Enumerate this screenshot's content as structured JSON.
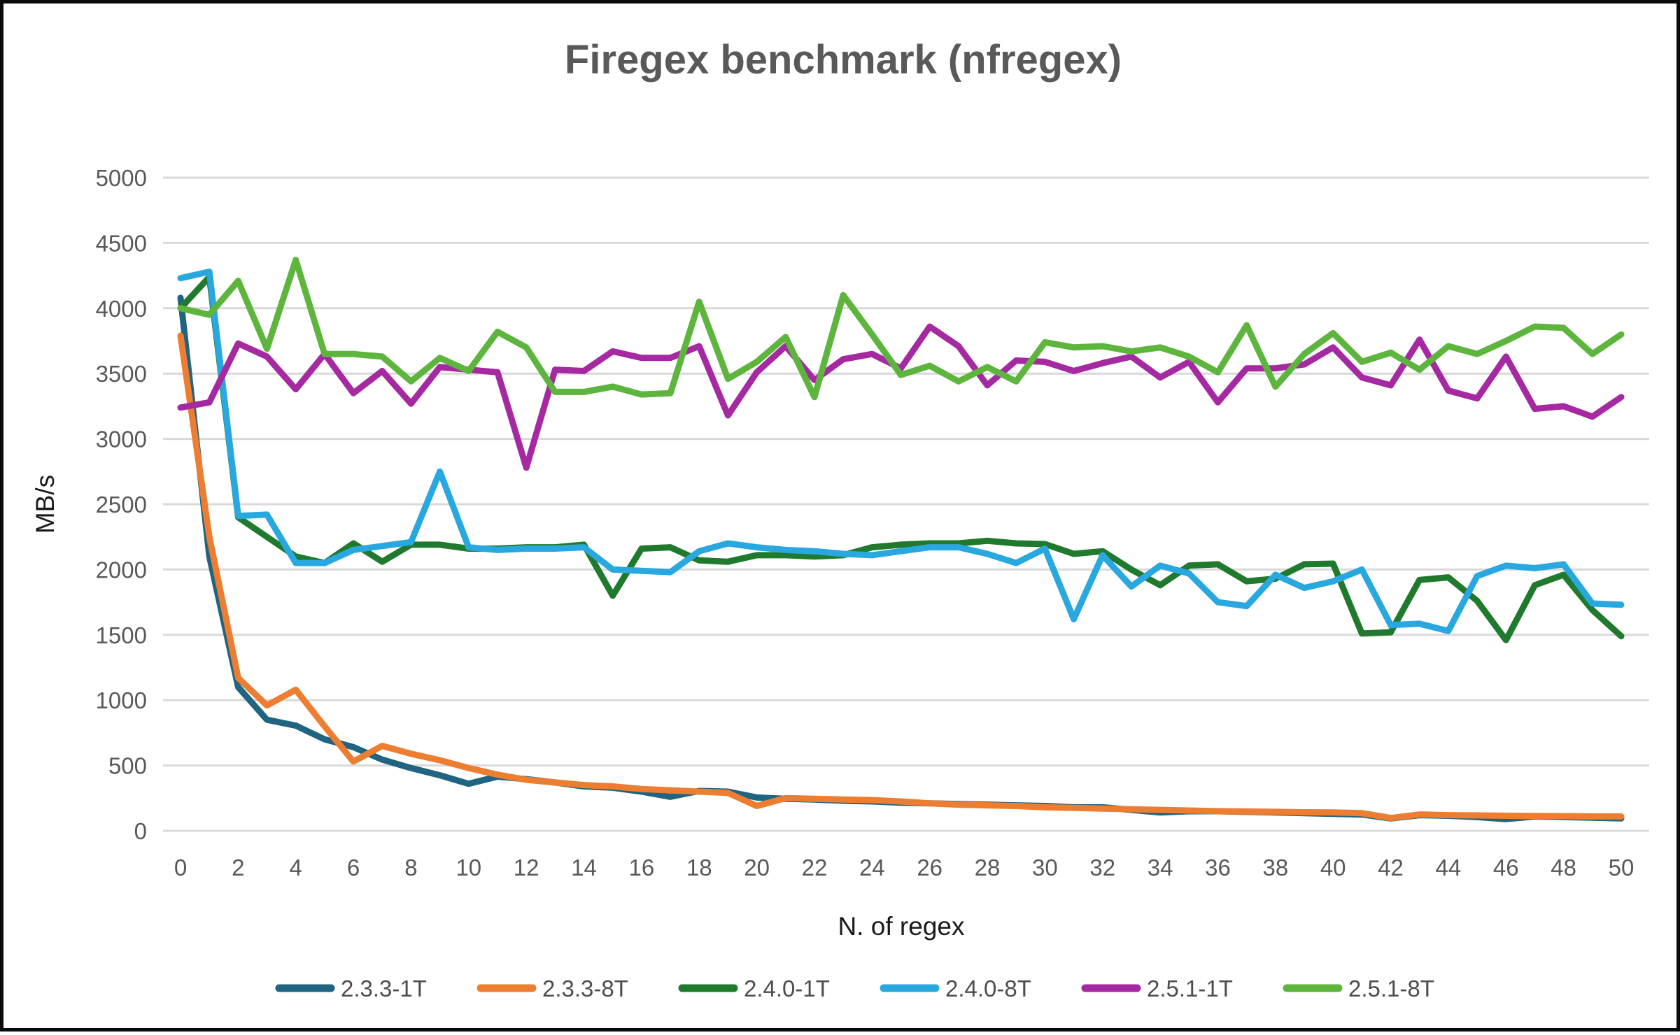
{
  "title": "Firegex benchmark (nfregex)",
  "chart_data": {
    "type": "line",
    "title": "Firegex benchmark (nfregex)",
    "xlabel": "N. of regex",
    "ylabel": "MB/s",
    "xlim": [
      0,
      50
    ],
    "x_tick_step": 2,
    "ylim": [
      0,
      5000
    ],
    "y_tick_step": 500,
    "grid": "horizontal-only",
    "grid_color": "#d9d9d9",
    "legend_position": "bottom",
    "background": "#ffffff",
    "border_color": "#0b0b0b",
    "title_color": "#595959",
    "tick_label_color": "#595959",
    "x": [
      0,
      1,
      2,
      3,
      4,
      5,
      6,
      7,
      8,
      9,
      10,
      11,
      12,
      13,
      14,
      15,
      16,
      17,
      18,
      19,
      20,
      21,
      22,
      23,
      24,
      25,
      26,
      27,
      28,
      29,
      30,
      31,
      32,
      33,
      34,
      35,
      36,
      37,
      38,
      39,
      40,
      41,
      42,
      43,
      44,
      45,
      46,
      47,
      48,
      49,
      50
    ],
    "series": [
      {
        "name": "2.3.3-1T",
        "color": "#1f6480",
        "values": [
          4080,
          2100,
          1100,
          850,
          805,
          700,
          640,
          545,
          480,
          425,
          360,
          415,
          395,
          370,
          340,
          330,
          300,
          260,
          305,
          300,
          255,
          245,
          240,
          230,
          225,
          215,
          210,
          205,
          200,
          195,
          190,
          180,
          180,
          160,
          140,
          150,
          150,
          145,
          140,
          135,
          130,
          125,
          95,
          120,
          115,
          105,
          90,
          110,
          105,
          100,
          95
        ]
      },
      {
        "name": "2.3.3-8T",
        "color": "#ed7d31",
        "values": [
          3790,
          2250,
          1170,
          960,
          1080,
          800,
          530,
          650,
          590,
          540,
          480,
          430,
          390,
          370,
          350,
          340,
          320,
          310,
          300,
          290,
          190,
          250,
          245,
          240,
          235,
          225,
          210,
          200,
          195,
          190,
          180,
          175,
          170,
          165,
          160,
          155,
          150,
          148,
          145,
          142,
          140,
          135,
          98,
          125,
          120,
          118,
          115,
          113,
          112,
          110,
          110
        ]
      },
      {
        "name": "2.4.0-1T",
        "color": "#1f7a2d",
        "values": [
          4000,
          4240,
          2400,
          2250,
          2100,
          2050,
          2200,
          2060,
          2190,
          2190,
          2160,
          2160,
          2170,
          2170,
          2190,
          1800,
          2160,
          2170,
          2070,
          2060,
          2110,
          2110,
          2100,
          2110,
          2170,
          2190,
          2200,
          2200,
          2220,
          2200,
          2195,
          2120,
          2140,
          2000,
          1880,
          2030,
          2040,
          1910,
          1930,
          2040,
          2045,
          1510,
          1520,
          1920,
          1940,
          1760,
          1460,
          1880,
          1960,
          1690,
          1490
        ]
      },
      {
        "name": "2.4.0-8T",
        "color": "#29a8df",
        "values": [
          4230,
          4280,
          2410,
          2420,
          2050,
          2050,
          2150,
          2180,
          2210,
          2750,
          2170,
          2150,
          2160,
          2160,
          2170,
          2000,
          1990,
          1980,
          2140,
          2200,
          2170,
          2150,
          2140,
          2120,
          2110,
          2140,
          2170,
          2170,
          2120,
          2050,
          2160,
          1620,
          2110,
          1870,
          2030,
          1970,
          1750,
          1720,
          1960,
          1860,
          1910,
          2000,
          1575,
          1585,
          1530,
          1950,
          2030,
          2010,
          2040,
          1740,
          1730
        ]
      },
      {
        "name": "2.5.1-1T",
        "color": "#a52aa2",
        "values": [
          3240,
          3280,
          3730,
          3630,
          3380,
          3650,
          3350,
          3520,
          3270,
          3550,
          3530,
          3510,
          2780,
          3530,
          3520,
          3670,
          3620,
          3620,
          3710,
          3180,
          3510,
          3710,
          3450,
          3610,
          3650,
          3540,
          3860,
          3710,
          3410,
          3600,
          3590,
          3520,
          3580,
          3630,
          3470,
          3590,
          3280,
          3540,
          3540,
          3570,
          3700,
          3470,
          3410,
          3760,
          3370,
          3310,
          3630,
          3230,
          3250,
          3170,
          3320
        ]
      },
      {
        "name": "2.5.1-8T",
        "color": "#5db53d",
        "values": [
          4000,
          3950,
          4210,
          3690,
          4370,
          3650,
          3650,
          3630,
          3440,
          3620,
          3520,
          3820,
          3700,
          3360,
          3360,
          3400,
          3340,
          3350,
          4050,
          3460,
          3590,
          3780,
          3320,
          4100,
          3800,
          3490,
          3560,
          3440,
          3550,
          3440,
          3740,
          3700,
          3710,
          3670,
          3700,
          3630,
          3510,
          3870,
          3400,
          3650,
          3810,
          3590,
          3660,
          3530,
          3710,
          3650,
          3750,
          3860,
          3850,
          3650,
          3800
        ]
      }
    ]
  }
}
